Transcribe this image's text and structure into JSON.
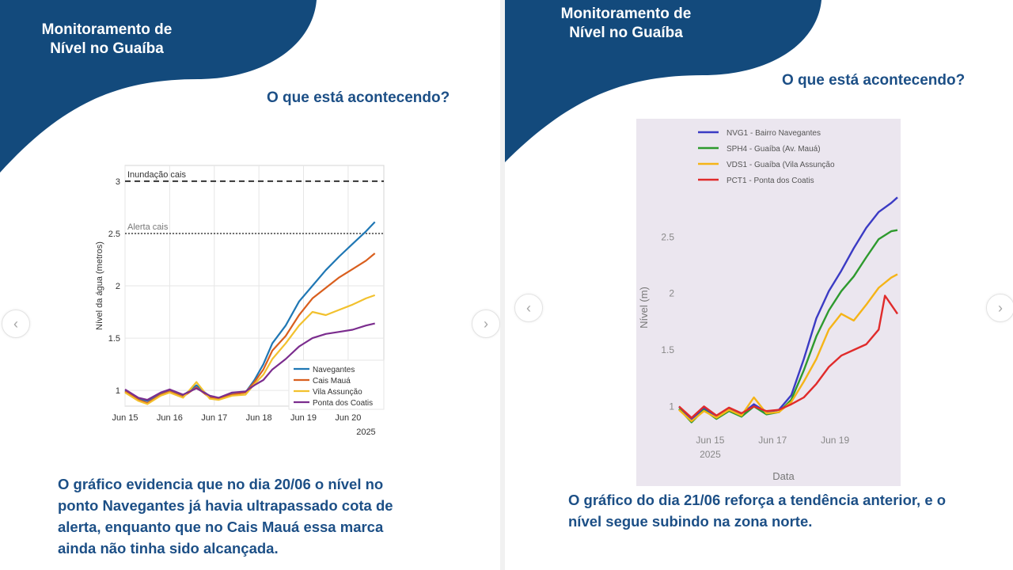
{
  "slides": [
    {
      "brand_title_line1": "Monitoramento de",
      "brand_title_line2": "Nível no Guaíba",
      "question": "O que está acontecendo?",
      "body": [
        "O gráfico evidencia que no dia 20/06 o nível no",
        "ponto Navegantes já havia  ultrapassado cota de",
        "alerta, enquanto que no Cais Mauá essa marca",
        "ainda não tinha sido  alcançada."
      ]
    },
    {
      "brand_title_line1": "Monitoramento de",
      "brand_title_line2": "Nível no Guaíba",
      "question": "O que está acontecendo?",
      "body": [
        "O gráfico do dia 21/06 reforça a tendência anterior, e o",
        "nível segue subindo na zona norte."
      ]
    }
  ],
  "nav": {
    "left_icon": "chevron-left-icon",
    "right_icon": "chevron-right-icon",
    "left_glyph": "‹",
    "right_glyph": "›"
  },
  "colors": {
    "brand_navy": "#134a7c",
    "text_blue": "#1c4f86"
  },
  "chart_data": [
    {
      "type": "line",
      "title": "",
      "xlabel": "",
      "ylabel": "Nível da água (metros)",
      "year_label": "2025",
      "x_ticks": [
        "Jun 15",
        "Jun 16",
        "Jun 17",
        "Jun 18",
        "Jun 19",
        "Jun 20"
      ],
      "y_ticks": [
        "1",
        "1.5",
        "2",
        "2.5",
        "3"
      ],
      "ylim": [
        0.85,
        3.15
      ],
      "xlim": [
        0,
        5.8
      ],
      "grid": true,
      "legend_position": "bottom-right",
      "reference_lines": [
        {
          "label": "Inundação cais",
          "value": 3.0,
          "style": "dashed"
        },
        {
          "label": "Alerta cais",
          "value": 2.5,
          "style": "dotted"
        }
      ],
      "series": [
        {
          "name": "Navegantes",
          "color": "#1f77b4",
          "x": [
            0,
            0.3,
            0.5,
            0.8,
            1.0,
            1.3,
            1.6,
            1.9,
            2.1,
            2.4,
            2.7,
            2.9,
            3.1,
            3.3,
            3.6,
            3.9,
            4.2,
            4.5,
            4.8,
            5.1,
            5.4,
            5.6
          ],
          "y": [
            1.0,
            0.92,
            0.9,
            0.97,
            1.0,
            0.95,
            1.05,
            0.94,
            0.92,
            0.97,
            0.98,
            1.1,
            1.25,
            1.45,
            1.62,
            1.85,
            2.0,
            2.15,
            2.28,
            2.4,
            2.52,
            2.61
          ]
        },
        {
          "name": "Cais Mauá",
          "color": "#d95f1e",
          "x": [
            0,
            0.3,
            0.5,
            0.8,
            1.0,
            1.3,
            1.6,
            1.9,
            2.1,
            2.4,
            2.7,
            2.9,
            3.1,
            3.3,
            3.6,
            3.9,
            4.2,
            4.5,
            4.8,
            5.1,
            5.4,
            5.6
          ],
          "y": [
            0.99,
            0.91,
            0.88,
            0.96,
            0.99,
            0.94,
            1.03,
            0.93,
            0.92,
            0.96,
            0.98,
            1.08,
            1.2,
            1.38,
            1.52,
            1.72,
            1.88,
            1.98,
            2.08,
            2.16,
            2.24,
            2.31
          ]
        },
        {
          "name": "Vila Assunção",
          "color": "#f2c12e",
          "x": [
            0,
            0.3,
            0.5,
            0.8,
            1.0,
            1.3,
            1.6,
            1.9,
            2.1,
            2.4,
            2.7,
            2.9,
            3.1,
            3.3,
            3.6,
            3.9,
            4.2,
            4.5,
            4.8,
            5.1,
            5.4,
            5.6
          ],
          "y": [
            0.98,
            0.9,
            0.87,
            0.95,
            0.98,
            0.93,
            1.08,
            0.92,
            0.91,
            0.95,
            0.96,
            1.06,
            1.15,
            1.3,
            1.45,
            1.62,
            1.75,
            1.72,
            1.77,
            1.82,
            1.88,
            1.91
          ]
        },
        {
          "name": "Ponta dos Coatis",
          "color": "#7b2d8e",
          "x": [
            0,
            0.3,
            0.5,
            0.8,
            1.0,
            1.3,
            1.6,
            1.9,
            2.1,
            2.4,
            2.7,
            2.9,
            3.1,
            3.3,
            3.6,
            3.9,
            4.2,
            4.5,
            4.8,
            5.1,
            5.4,
            5.6
          ],
          "y": [
            1.01,
            0.93,
            0.91,
            0.98,
            1.01,
            0.96,
            1.02,
            0.95,
            0.93,
            0.98,
            0.99,
            1.05,
            1.1,
            1.2,
            1.3,
            1.42,
            1.5,
            1.54,
            1.56,
            1.58,
            1.62,
            1.64
          ]
        }
      ]
    },
    {
      "type": "line",
      "title": "",
      "xlabel": "Data",
      "ylabel": "Nível (m)",
      "year_label": "2025",
      "x_ticks": [
        "Jun 15",
        "Jun 17",
        "Jun 19"
      ],
      "x_tick_positions": [
        1,
        3,
        5
      ],
      "y_ticks": [
        "1",
        "1.5",
        "2",
        "2.5"
      ],
      "ylim": [
        0.8,
        2.95
      ],
      "xlim": [
        0,
        7
      ],
      "grid": false,
      "legend_position": "top-left",
      "series": [
        {
          "name": "NVG1 - Bairro Navegantes",
          "color": "#3b3bc4",
          "x": [
            0,
            0.4,
            0.8,
            1.2,
            1.6,
            2.0,
            2.4,
            2.8,
            3.2,
            3.6,
            4.0,
            4.4,
            4.8,
            5.2,
            5.6,
            6.0,
            6.4,
            6.8,
            7.0
          ],
          "y": [
            1.0,
            0.88,
            0.99,
            0.9,
            0.98,
            0.93,
            1.02,
            0.95,
            0.97,
            1.1,
            1.42,
            1.78,
            2.02,
            2.2,
            2.4,
            2.58,
            2.72,
            2.8,
            2.85
          ]
        },
        {
          "name": "SPH4 - Guaíba (Av. Mauá)",
          "color": "#2e9a2e",
          "x": [
            0,
            0.4,
            0.8,
            1.2,
            1.6,
            2.0,
            2.4,
            2.8,
            3.2,
            3.6,
            4.0,
            4.4,
            4.8,
            5.2,
            5.6,
            6.0,
            6.4,
            6.8,
            7.0
          ],
          "y": [
            0.98,
            0.86,
            0.97,
            0.89,
            0.96,
            0.91,
            1.0,
            0.93,
            0.95,
            1.06,
            1.32,
            1.62,
            1.85,
            2.02,
            2.15,
            2.32,
            2.48,
            2.55,
            2.56
          ]
        },
        {
          "name": "VDS1 - Guaíba (Vila Assunção",
          "color": "#f5b417",
          "x": [
            0,
            0.4,
            0.8,
            1.2,
            1.6,
            2.0,
            2.4,
            2.8,
            3.2,
            3.6,
            4.0,
            4.4,
            4.8,
            5.2,
            5.6,
            6.0,
            6.4,
            6.8,
            7.0
          ],
          "y": [
            0.97,
            0.87,
            0.96,
            0.9,
            0.97,
            0.92,
            1.08,
            0.94,
            0.95,
            1.04,
            1.22,
            1.42,
            1.68,
            1.82,
            1.76,
            1.9,
            2.05,
            2.14,
            2.17
          ]
        },
        {
          "name": "PCT1 - Ponta dos Coatis",
          "color": "#e02b2b",
          "x": [
            0,
            0.4,
            0.8,
            1.2,
            1.6,
            2.0,
            2.4,
            2.8,
            3.2,
            3.6,
            4.0,
            4.4,
            4.8,
            5.2,
            5.6,
            6.0,
            6.4,
            6.6,
            6.8,
            7.0
          ],
          "y": [
            1.0,
            0.9,
            1.0,
            0.92,
            0.99,
            0.94,
            1.0,
            0.96,
            0.97,
            1.02,
            1.08,
            1.2,
            1.35,
            1.45,
            1.5,
            1.55,
            1.68,
            1.98,
            1.9,
            1.82
          ]
        }
      ]
    }
  ]
}
